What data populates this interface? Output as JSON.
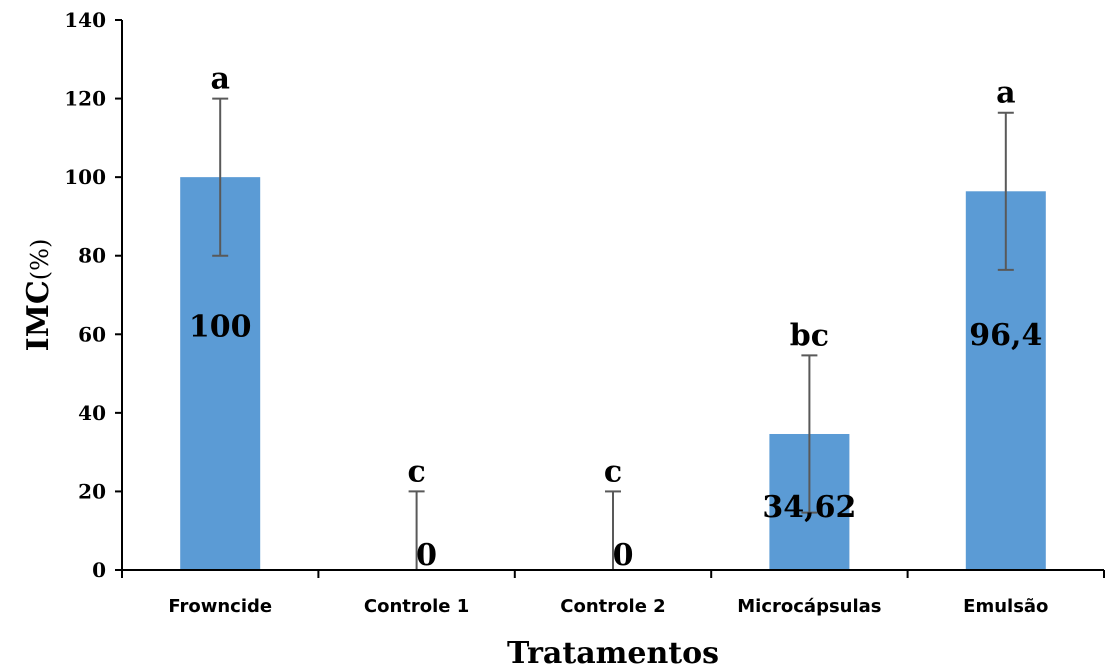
{
  "chart_data": {
    "type": "bar",
    "categories": [
      "Frowncide",
      "Controle 1",
      "Controle 2",
      "Microcápsulas",
      "Emulsão"
    ],
    "values": [
      100,
      0,
      0,
      34.62,
      96.4
    ],
    "value_labels": [
      "100",
      "0",
      "0",
      "34,62",
      "96,4"
    ],
    "error": [
      20,
      20,
      20,
      20,
      20
    ],
    "significance_letters": [
      "a",
      "c",
      "c",
      "bc",
      "a"
    ],
    "xlabel": "Tratamentos",
    "ylabel": "IMC",
    "ylabel_unit": "(%)",
    "ylim": [
      0,
      140
    ],
    "yticks": [
      0,
      20,
      40,
      60,
      80,
      100,
      120,
      140
    ],
    "bar_color": "#5b9bd5",
    "error_bar_color": "#595959",
    "grid": false,
    "legend": "none"
  }
}
